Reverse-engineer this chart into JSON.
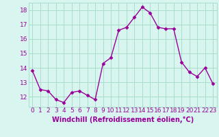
{
  "x": [
    0,
    1,
    2,
    3,
    4,
    5,
    6,
    7,
    8,
    9,
    10,
    11,
    12,
    13,
    14,
    15,
    16,
    17,
    18,
    19,
    20,
    21,
    22,
    23
  ],
  "y": [
    13.8,
    12.5,
    12.4,
    11.8,
    11.6,
    12.3,
    12.4,
    12.1,
    11.8,
    14.3,
    14.7,
    16.6,
    16.8,
    17.5,
    18.2,
    17.8,
    16.8,
    16.7,
    16.7,
    14.4,
    13.7,
    13.4,
    14.0,
    12.9
  ],
  "line_color": "#990099",
  "marker": "D",
  "markersize": 2.5,
  "linewidth": 1.0,
  "background_color": "#d8f5f0",
  "grid_color": "#aaddcc",
  "xlabel": "Windchill (Refroidissement éolien,°C)",
  "xlabel_color": "#990099",
  "ylabel_ticks": [
    12,
    13,
    14,
    15,
    16,
    17,
    18
  ],
  "xlabel_ticks": [
    0,
    1,
    2,
    3,
    4,
    5,
    6,
    7,
    8,
    9,
    10,
    11,
    12,
    13,
    14,
    15,
    16,
    17,
    18,
    19,
    20,
    21,
    22,
    23
  ],
  "xlim": [
    -0.5,
    23.5
  ],
  "ylim": [
    11.3,
    18.5
  ],
  "tick_color": "#990099",
  "xlabel_fontsize": 7,
  "tick_fontsize": 6.5
}
